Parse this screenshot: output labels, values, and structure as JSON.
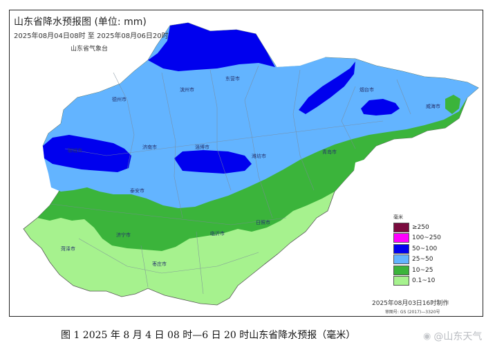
{
  "map": {
    "title": "山东省降水预报图 (单位: mm)",
    "period": "2025年08月04日08时 至 2025年08月06日20时",
    "organization": "山东省气象台",
    "made_note": "2025年08月03日16时制作",
    "review_number": "审图号: GS (2017)—3320号",
    "legend_unit": "毫米",
    "legend": [
      {
        "label": "≥250",
        "color": "#7a0a3e"
      },
      {
        "label": "100~250",
        "color": "#ff00ff"
      },
      {
        "label": "50~100",
        "color": "#0000ee"
      },
      {
        "label": "25~50",
        "color": "#63b4ff"
      },
      {
        "label": "10~25",
        "color": "#3bb43b"
      },
      {
        "label": "0.1~10",
        "color": "#a6f28e"
      }
    ],
    "cities": [
      {
        "name": "东营市"
      },
      {
        "name": "滨州市"
      },
      {
        "name": "德州市"
      },
      {
        "name": "烟台市"
      },
      {
        "name": "威海市"
      },
      {
        "name": "聊城市"
      },
      {
        "name": "济南市"
      },
      {
        "name": "淄博市"
      },
      {
        "name": "潍坊市"
      },
      {
        "name": "青岛市"
      },
      {
        "name": "泰安市"
      },
      {
        "name": "济宁市"
      },
      {
        "name": "临沂市"
      },
      {
        "name": "日照市"
      },
      {
        "name": "菏泽市"
      },
      {
        "name": "枣庄市"
      }
    ]
  },
  "caption": "图 1 2025 年 8 月 4 日 08 时—6 日 20 时山东省降水预报（毫米）",
  "watermark": {
    "text": "@山东天气",
    "logo_icon": "weibo-icon"
  }
}
